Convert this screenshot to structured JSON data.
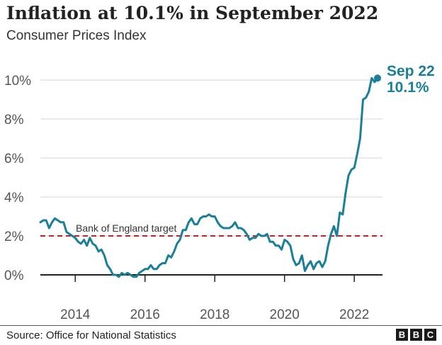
{
  "chart_data": {
    "type": "line",
    "title": "Inflation at 10.1% in September 2022",
    "subtitle": "Consumer Prices Index",
    "xlabel": "",
    "ylabel": "",
    "x_ticks": [
      "2014",
      "2016",
      "2018",
      "2020",
      "2022"
    ],
    "y_ticks": [
      "0%",
      "2%",
      "4%",
      "6%",
      "8%",
      "10%"
    ],
    "xlim": [
      "2013-01",
      "2022-09"
    ],
    "ylim": [
      -1.4,
      11
    ],
    "grid": "horizontal",
    "series": [
      {
        "color": "#1a7f97",
        "x": [
          "2013-01",
          "2013-02",
          "2013-03",
          "2013-04",
          "2013-05",
          "2013-06",
          "2013-07",
          "2013-08",
          "2013-09",
          "2013-10",
          "2013-11",
          "2013-12",
          "2014-01",
          "2014-02",
          "2014-03",
          "2014-04",
          "2014-05",
          "2014-06",
          "2014-07",
          "2014-08",
          "2014-09",
          "2014-10",
          "2014-11",
          "2014-12",
          "2015-01",
          "2015-02",
          "2015-03",
          "2015-04",
          "2015-05",
          "2015-06",
          "2015-07",
          "2015-08",
          "2015-09",
          "2015-10",
          "2015-11",
          "2015-12",
          "2016-01",
          "2016-02",
          "2016-03",
          "2016-04",
          "2016-05",
          "2016-06",
          "2016-07",
          "2016-08",
          "2016-09",
          "2016-10",
          "2016-11",
          "2016-12",
          "2017-01",
          "2017-02",
          "2017-03",
          "2017-04",
          "2017-05",
          "2017-06",
          "2017-07",
          "2017-08",
          "2017-09",
          "2017-10",
          "2017-11",
          "2017-12",
          "2018-01",
          "2018-02",
          "2018-03",
          "2018-04",
          "2018-05",
          "2018-06",
          "2018-07",
          "2018-08",
          "2018-09",
          "2018-10",
          "2018-11",
          "2018-12",
          "2019-01",
          "2019-02",
          "2019-03",
          "2019-04",
          "2019-05",
          "2019-06",
          "2019-07",
          "2019-08",
          "2019-09",
          "2019-10",
          "2019-11",
          "2019-12",
          "2020-01",
          "2020-02",
          "2020-03",
          "2020-04",
          "2020-05",
          "2020-06",
          "2020-07",
          "2020-08",
          "2020-09",
          "2020-10",
          "2020-11",
          "2020-12",
          "2021-01",
          "2021-02",
          "2021-03",
          "2021-04",
          "2021-05",
          "2021-06",
          "2021-07",
          "2021-08",
          "2021-09",
          "2021-10",
          "2021-11",
          "2021-12",
          "2022-01",
          "2022-02",
          "2022-03",
          "2022-04",
          "2022-05",
          "2022-06",
          "2022-07",
          "2022-08",
          "2022-09"
        ],
        "values": [
          2.7,
          2.8,
          2.8,
          2.4,
          2.7,
          2.9,
          2.8,
          2.7,
          2.7,
          2.2,
          2.1,
          2.0,
          1.9,
          1.7,
          1.6,
          1.8,
          1.5,
          1.9,
          1.6,
          1.5,
          1.2,
          1.3,
          1.0,
          0.5,
          0.3,
          0.0,
          0.0,
          -0.1,
          0.1,
          0.0,
          0.1,
          0.0,
          -0.1,
          -0.1,
          0.1,
          0.2,
          0.3,
          0.3,
          0.5,
          0.3,
          0.3,
          0.5,
          0.6,
          0.6,
          1.0,
          0.9,
          1.2,
          1.6,
          1.8,
          2.3,
          2.3,
          2.7,
          2.9,
          2.6,
          2.6,
          2.9,
          3.0,
          3.0,
          3.1,
          3.0,
          3.0,
          2.7,
          2.5,
          2.4,
          2.4,
          2.4,
          2.5,
          2.7,
          2.4,
          2.4,
          2.3,
          2.1,
          1.8,
          1.9,
          1.9,
          2.1,
          2.0,
          2.0,
          2.1,
          1.7,
          1.7,
          1.5,
          1.5,
          1.3,
          1.8,
          1.7,
          1.5,
          0.8,
          0.5,
          0.6,
          1.0,
          0.2,
          0.5,
          0.7,
          0.3,
          0.6,
          0.7,
          0.4,
          0.7,
          1.5,
          2.1,
          2.5,
          2.0,
          3.2,
          3.1,
          4.2,
          5.1,
          5.4,
          5.5,
          6.2,
          7.0,
          9.0,
          9.1,
          9.4,
          10.1,
          9.9,
          10.1
        ]
      }
    ],
    "reference_line": {
      "value": 2,
      "label": "Bank of England target",
      "color": "#b32a2a"
    },
    "annotation": {
      "line1": "Sep 22",
      "line2": "10.1%"
    }
  },
  "footer": {
    "source": "Source: Office for National Statistics",
    "logo": [
      "B",
      "B",
      "C"
    ]
  }
}
